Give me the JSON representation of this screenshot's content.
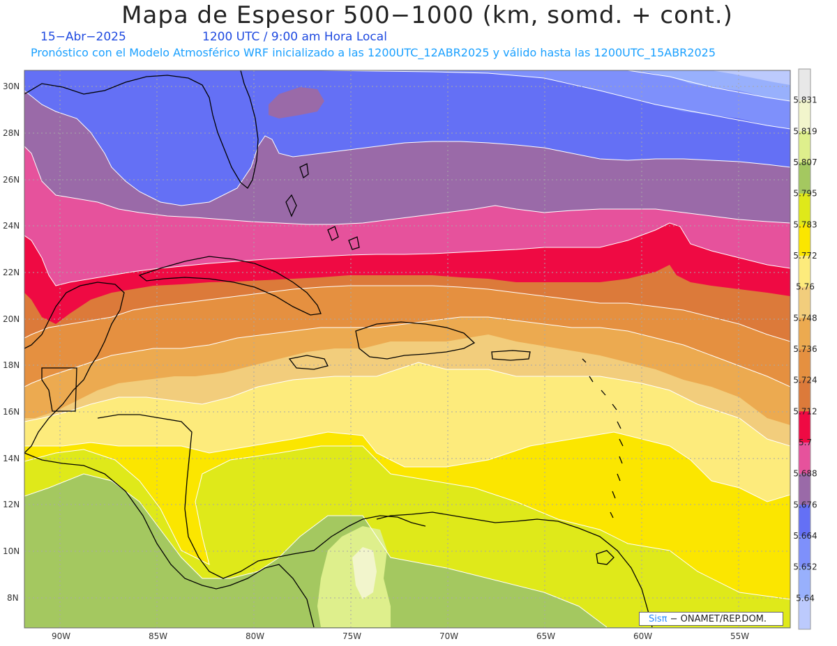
{
  "header": {
    "title": "Mapa de Espesor 500−1000 (km, somd. + cont.)",
    "date": "15−Abr−2025",
    "time": "1200 UTC / 9:00 am Hora Local",
    "description": "Pronóstico con el Modelo Atmosférico WRF inicializado a las 1200UTC_12ABR2025 y válido hasta las  1200UTC_15ABR2025"
  },
  "credit": {
    "brand": "Sisπ",
    "text": "− ONAMET/REP.DOM."
  },
  "axes": {
    "longitude_labels": [
      "90W",
      "85W",
      "80W",
      "75W",
      "70W",
      "65W",
      "60W",
      "55W"
    ],
    "latitude_labels": [
      "30N",
      "28N",
      "26N",
      "24N",
      "22N",
      "20N",
      "18N",
      "16N",
      "14N",
      "12N",
      "10N",
      "8N"
    ]
  },
  "colorbar": {
    "labels": [
      "5.831",
      "5.819",
      "5.807",
      "5.795",
      "5.783",
      "5.772",
      "5.76",
      "5.748",
      "5.736",
      "5.724",
      "5.712",
      "5.7",
      "5.688",
      "5.676",
      "5.664",
      "5.652",
      "5.64"
    ],
    "colors": [
      "#e8e8e8",
      "#f2f5cc",
      "#deef8c",
      "#a4c860",
      "#dfe91a",
      "#fbe600",
      "#fdeb7c",
      "#f2cd7c",
      "#ecaa50",
      "#e59040",
      "#dc7a3a",
      "#ef0a43",
      "#e6529c",
      "#9a6aa8",
      "#6470f5",
      "#7e90fb",
      "#98b0fc",
      "#bccafd"
    ]
  },
  "map": {
    "lon_range": [
      -92,
      -52
    ],
    "lat_range": [
      7,
      30.5
    ],
    "grid": true
  },
  "colors": {
    "land_outline": "#000000",
    "grid": "#a8a8a8",
    "contour": "#ffffff"
  }
}
